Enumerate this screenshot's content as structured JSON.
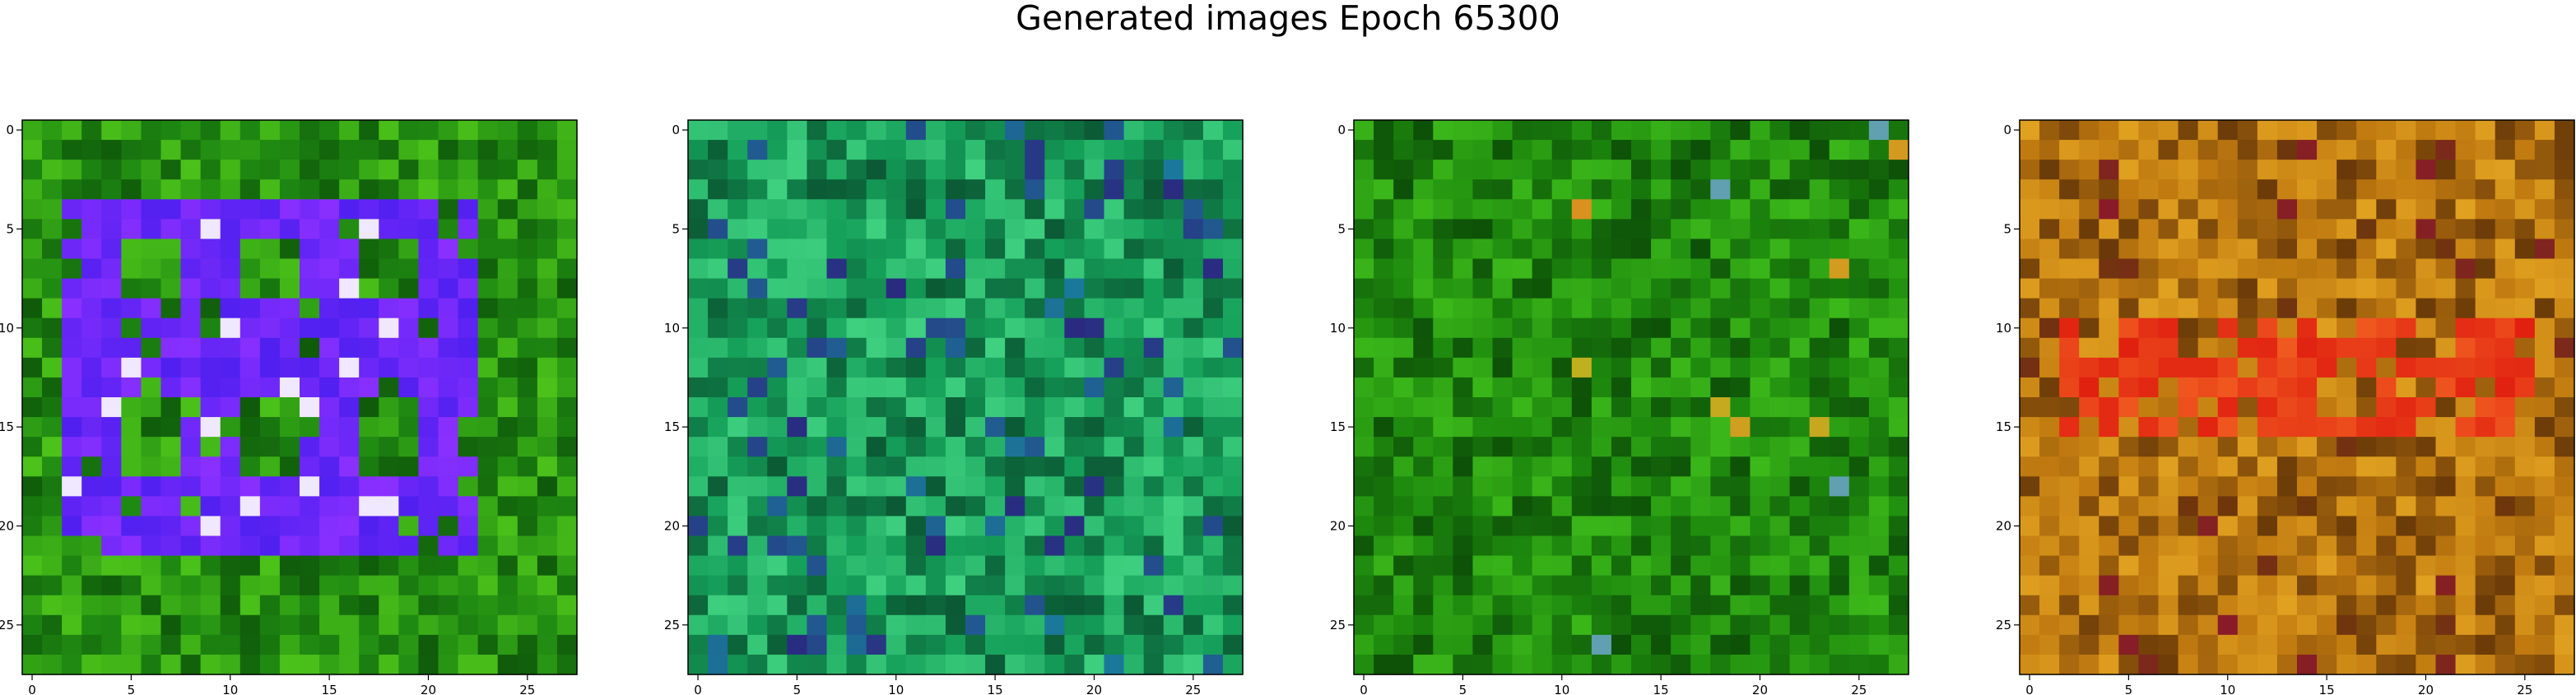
{
  "title": "Generated images Epoch 65300",
  "chart_data": {
    "type": "heatmap",
    "title": "Generated images Epoch 65300",
    "panel_count": 4,
    "grid_size": [
      28,
      28
    ],
    "xlim": [
      -0.5,
      27.5
    ],
    "ylim": [
      27.5,
      -0.5
    ],
    "xticks": [
      0,
      5,
      10,
      15,
      20,
      25
    ],
    "yticks": [
      0,
      5,
      10,
      15,
      20,
      25
    ],
    "panels": [
      {
        "description_colors": {
          "base": "#1f8a12",
          "dark": "#0f5a0a",
          "light": "#4cc21a",
          "accent": "#5020f0",
          "accent2": "#8a30ff",
          "highlight": "#f0e8ff"
        },
        "pattern": "blue-violet rectangular frame on green background"
      },
      {
        "description_colors": {
          "base": "#15a05a",
          "dark": "#0b5a35",
          "light": "#3fd080",
          "accent": "#1a7a9a",
          "accent2": "#2a2a80",
          "highlight": "#e08080"
        },
        "pattern": "teal-green noise"
      },
      {
        "description_colors": {
          "base": "#1e8a0e",
          "dark": "#0d5008",
          "light": "#3cb81a",
          "accent": "#e08a20",
          "accent2": "#c0b020",
          "highlight": "#60a0b0"
        },
        "pattern": "green noise with a few orange pixels"
      },
      {
        "description_colors": {
          "base": "#c07a10",
          "dark": "#6a3a08",
          "light": "#e0a020",
          "accent": "#e02010",
          "accent2": "#8a1a2a",
          "highlight": "#f09090"
        },
        "pattern": "orange-brown noise with red horizontal band"
      }
    ]
  }
}
